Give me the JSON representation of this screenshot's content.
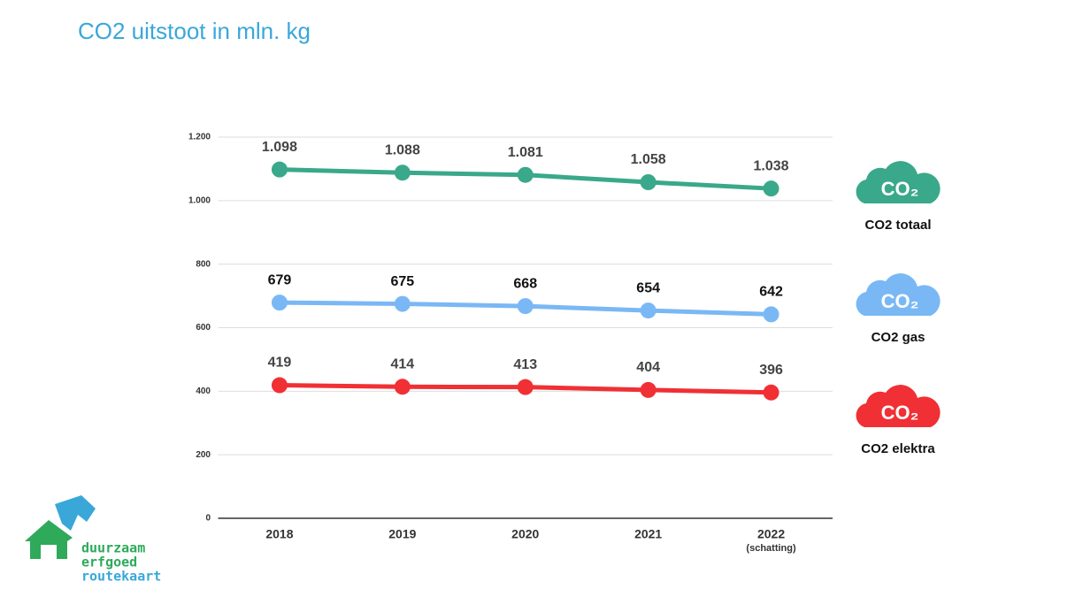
{
  "chart_data": {
    "type": "line",
    "title": "CO2 uitstoot in mln. kg",
    "categories": [
      "2018",
      "2019",
      "2020",
      "2021",
      "2022"
    ],
    "annotations": [
      "(schatting)"
    ],
    "series": [
      {
        "name": "CO2 totaal",
        "color": "#3aa88a",
        "values": [
          1098,
          1088,
          1081,
          1058,
          1038
        ],
        "value_labels": [
          "1.098",
          "1.088",
          "1.081",
          "1.058",
          "1.038"
        ]
      },
      {
        "name": "CO2 gas",
        "color": "#7ab8f5",
        "values": [
          679,
          675,
          668,
          654,
          642
        ]
      },
      {
        "name": "CO2 elektra",
        "color": "#f03034",
        "values": [
          419,
          414,
          413,
          404,
          396
        ]
      }
    ],
    "legend_icon": "CO₂",
    "ylim": [
      0,
      1200
    ],
    "yticks": [
      0,
      200,
      400,
      600,
      800,
      {
        "value": 1000,
        "label": "1.000"
      },
      {
        "value": 1200,
        "label": "1.200"
      }
    ],
    "grid": true,
    "logo": [
      "duurzaam",
      "erfgoed",
      "routekaart"
    ]
  }
}
